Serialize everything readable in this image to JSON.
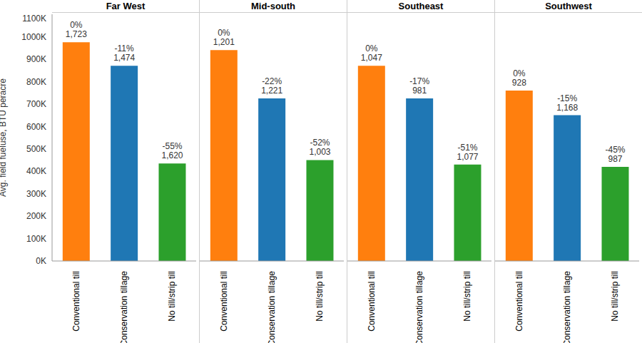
{
  "chart_data": [
    {
      "type": "bar",
      "title": "Far West",
      "ylabel": "Avg. field fueluse, BTU peracre",
      "categories": [
        "Conventional till",
        "Conservation tillage",
        "No till/strip till"
      ],
      "values": [
        975000,
        870000,
        435000
      ],
      "colors": [
        "#ff7f0e",
        "#1f77b4",
        "#2ca02c"
      ],
      "annotations": [
        {
          "value": 0,
          "label": "0%"
        },
        {
          "value": -11,
          "label": "-11%"
        },
        {
          "value": -55,
          "label": "-55%"
        }
      ],
      "counts": [
        {
          "value": 1723,
          "label": "1,723"
        },
        {
          "value": 1474,
          "label": "1,474"
        },
        {
          "value": 1620,
          "label": "1,620"
        }
      ],
      "ylim": [
        0,
        1100000
      ],
      "yticks": [
        {
          "value": 0,
          "label": "0K"
        },
        {
          "value": 100000,
          "label": "100K"
        },
        {
          "value": 200000,
          "label": "200K"
        },
        {
          "value": 300000,
          "label": "300K"
        },
        {
          "value": 400000,
          "label": "400K"
        },
        {
          "value": 500000,
          "label": "500K"
        },
        {
          "value": 600000,
          "label": "600K"
        },
        {
          "value": 700000,
          "label": "700K"
        },
        {
          "value": 800000,
          "label": "800K"
        },
        {
          "value": 900000,
          "label": "900K"
        },
        {
          "value": 1000000,
          "label": "1000K"
        },
        {
          "value": 1100000,
          "label": "1100K"
        }
      ],
      "grid": false
    },
    {
      "type": "bar",
      "title": "Mid-south",
      "categories": [
        "Conventional till",
        "Conservation tillage",
        "No till/strip till"
      ],
      "values": [
        940000,
        725000,
        450000
      ],
      "colors": [
        "#ff7f0e",
        "#1f77b4",
        "#2ca02c"
      ],
      "annotations": [
        {
          "value": 0,
          "label": "0%"
        },
        {
          "value": -22,
          "label": "-22%"
        },
        {
          "value": -52,
          "label": "-52%"
        }
      ],
      "counts": [
        {
          "value": 1201,
          "label": "1,201"
        },
        {
          "value": 1221,
          "label": "1,221"
        },
        {
          "value": 1003,
          "label": "1,003"
        }
      ],
      "ylim": [
        0,
        1100000
      ],
      "grid": false,
      "tick_labels": "x"
    },
    {
      "type": "bar",
      "title": "Southeast",
      "categories": [
        "Conventional till",
        "Conservation tillage",
        "No till/strip till"
      ],
      "values": [
        870000,
        725000,
        430000
      ],
      "colors": [
        "#ff7f0e",
        "#1f77b4",
        "#2ca02c"
      ],
      "annotations": [
        {
          "value": 0,
          "label": "0%"
        },
        {
          "value": -17,
          "label": "-17%"
        },
        {
          "value": -51,
          "label": "-51%"
        }
      ],
      "counts": [
        {
          "value": 1047,
          "label": "1,047"
        },
        {
          "value": 981,
          "label": "981"
        },
        {
          "value": 1077,
          "label": "1,077"
        }
      ],
      "ylim": [
        0,
        1100000
      ],
      "grid": false,
      "tick_labels": "x"
    },
    {
      "type": "bar",
      "title": "Southwest",
      "categories": [
        "Conventional till",
        "Conservation tillage",
        "No till/strip till"
      ],
      "values": [
        760000,
        650000,
        420000
      ],
      "colors": [
        "#ff7f0e",
        "#1f77b4",
        "#2ca02c"
      ],
      "annotations": [
        {
          "value": 0,
          "label": "0%"
        },
        {
          "value": -15,
          "label": "-15%"
        },
        {
          "value": -45,
          "label": "-45%"
        }
      ],
      "counts": [
        {
          "value": 928,
          "label": "928"
        },
        {
          "value": 1168,
          "label": "1,168"
        },
        {
          "value": 987,
          "label": "987"
        }
      ],
      "ylim": [
        0,
        1100000
      ],
      "grid": false,
      "tick_labels": "x"
    }
  ]
}
